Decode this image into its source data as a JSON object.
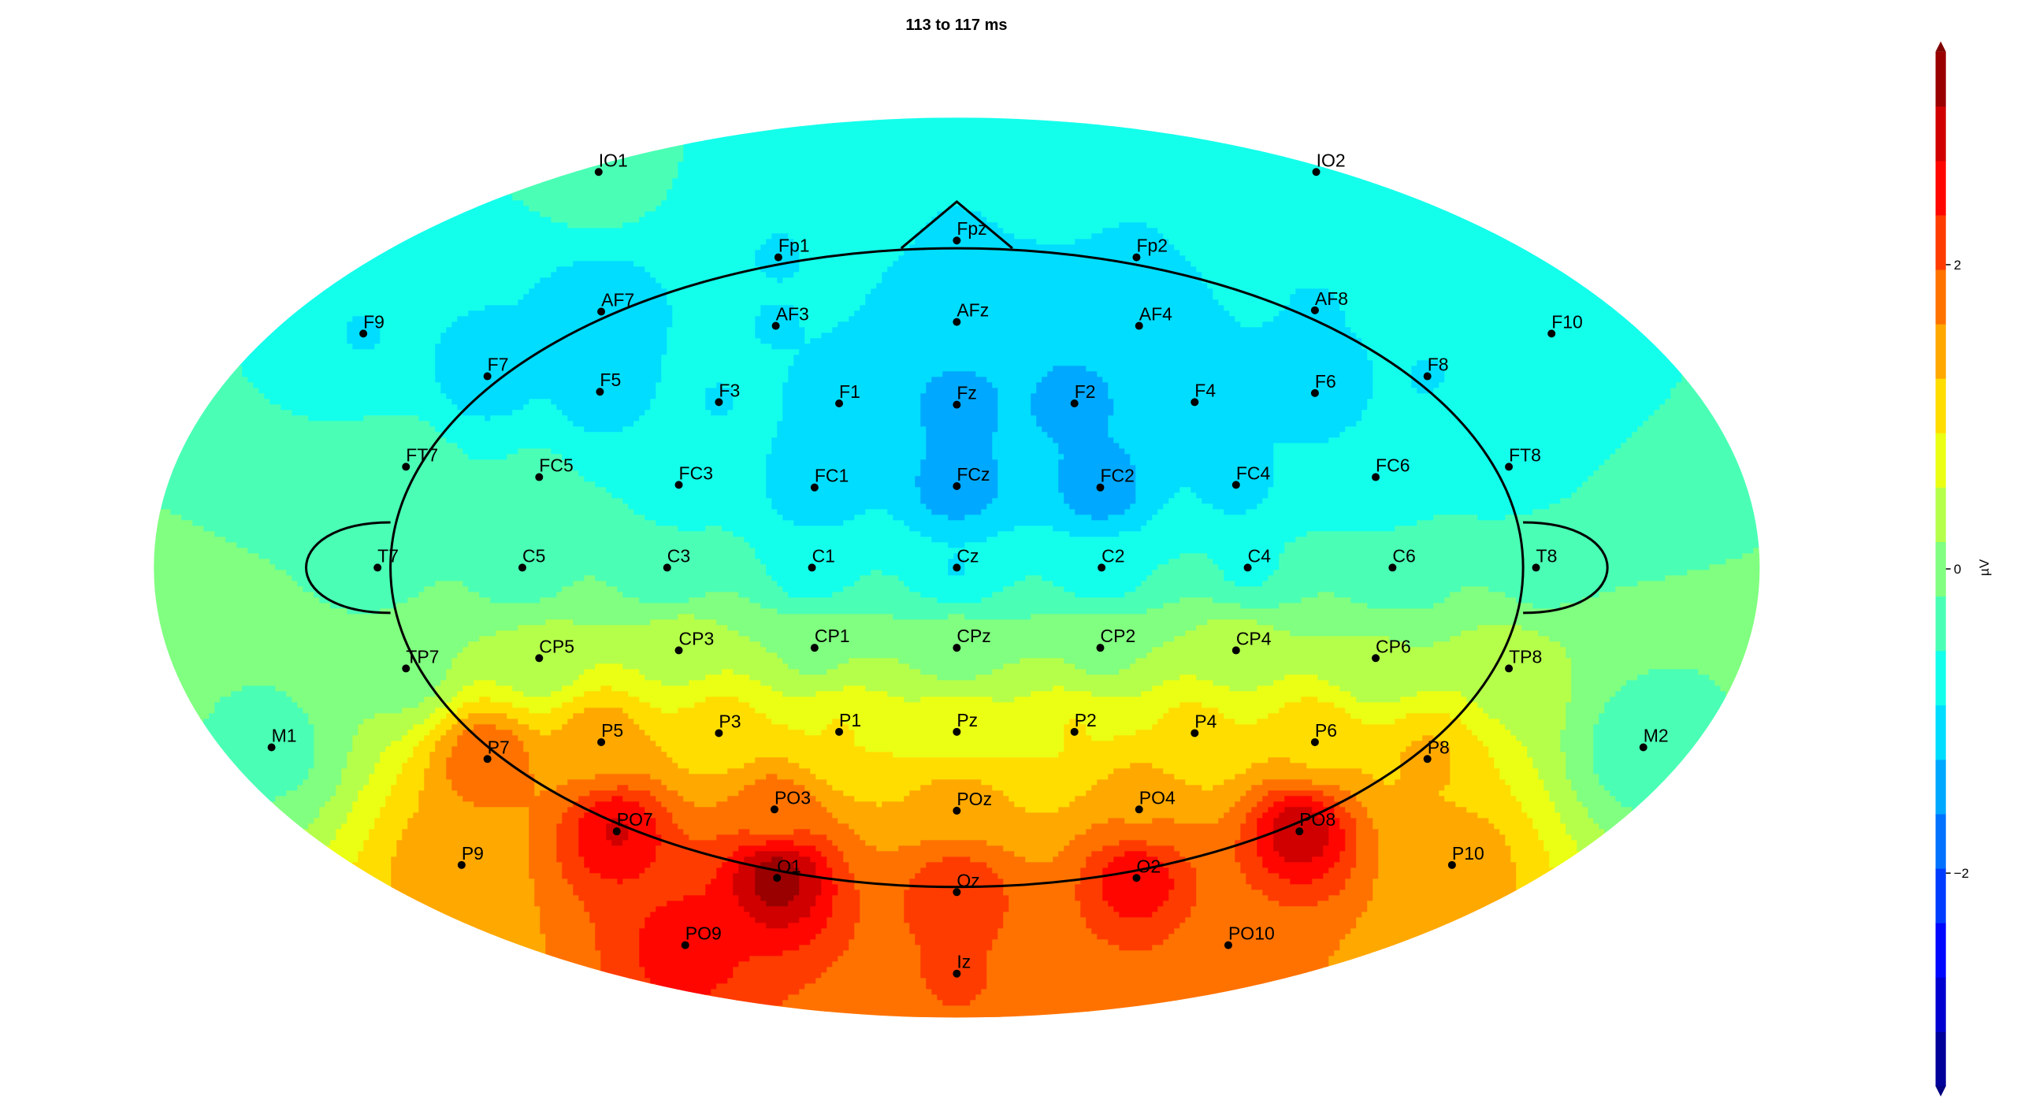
{
  "chart_data": {
    "type": "topomap",
    "title": "113 to 117 ms",
    "categories": [
      "IO1",
      "IO2",
      "Fp1",
      "Fpz",
      "Fp2",
      "F9",
      "AF7",
      "AF3",
      "AFz",
      "AF4",
      "AF8",
      "F10",
      "F7",
      "F5",
      "F3",
      "F1",
      "Fz",
      "F2",
      "F4",
      "F6",
      "F8",
      "FT7",
      "FC5",
      "FC3",
      "FC1",
      "FCz",
      "FC2",
      "FC4",
      "FC6",
      "FT8",
      "T7",
      "C5",
      "C3",
      "C1",
      "Cz",
      "C2",
      "C4",
      "C6",
      "T8",
      "TP7",
      "CP5",
      "CP3",
      "CP1",
      "CPz",
      "CP2",
      "CP4",
      "CP6",
      "TP8",
      "M1",
      "P7",
      "P5",
      "P3",
      "P1",
      "Pz",
      "P2",
      "P4",
      "P6",
      "P8",
      "M2",
      "PO3",
      "POz",
      "PO4",
      "PO7",
      "PO8",
      "P9",
      "O1",
      "Oz",
      "O2",
      "P10",
      "PO9",
      "PO10",
      "Iz"
    ],
    "values": [
      -0.3,
      -0.8,
      -0.9,
      -0.9,
      -0.9,
      -0.9,
      -1.1,
      -0.9,
      -1.0,
      -1.0,
      -0.9,
      -0.8,
      -1.1,
      -1.1,
      -0.9,
      -1.0,
      -1.4,
      -1.4,
      -1.0,
      -1.1,
      -0.9,
      -0.4,
      -0.5,
      -0.7,
      -1.2,
      -1.5,
      -1.5,
      -1.0,
      -0.8,
      -0.8,
      -0.3,
      -0.4,
      -0.5,
      -0.8,
      -0.9,
      -0.8,
      -0.6,
      -0.5,
      -0.3,
      0.0,
      0.3,
      0.4,
      0.1,
      0.0,
      0.1,
      0.4,
      0.2,
      0.4,
      -0.3,
      1.9,
      1.5,
      1.1,
      0.9,
      0.8,
      0.9,
      1.0,
      1.2,
      1.3,
      -0.4,
      1.8,
      1.5,
      1.6,
      2.7,
      2.9,
      1.5,
      3.2,
      2.3,
      2.6,
      1.5,
      2.5,
      1.9,
      2.0
    ],
    "colorbar_label": "µV",
    "ylim": [
      -3.4,
      3.4
    ],
    "yticks": [
      {
        "value": -2,
        "label": "−2"
      },
      0,
      2
    ]
  }
}
